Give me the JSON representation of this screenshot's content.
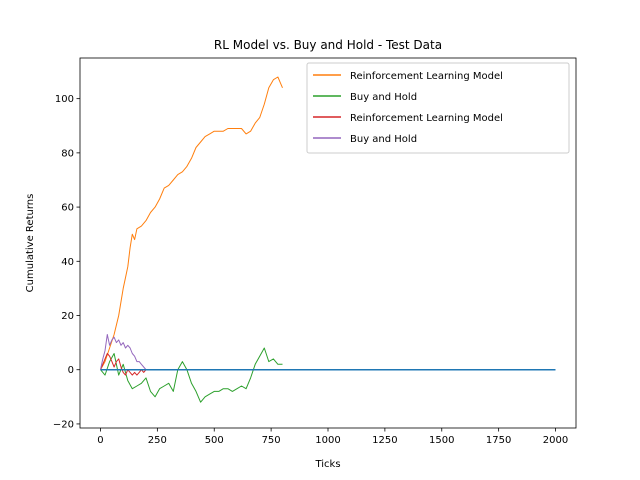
{
  "chart_data": {
    "type": "line",
    "title": "RL Model vs. Buy and Hold - Test Data",
    "xlabel": "Ticks",
    "ylabel": "Cumulative Returns",
    "xlim": [
      -90,
      2090
    ],
    "ylim": [
      -21.5,
      115
    ],
    "xticks": [
      0,
      250,
      500,
      750,
      1000,
      1250,
      1500,
      1750,
      2000
    ],
    "yticks": [
      -20,
      0,
      20,
      40,
      60,
      80,
      100
    ],
    "grid": false,
    "legend_position": "top-right",
    "series": [
      {
        "name": "Reinforcement Learning Model",
        "color": "#ff7f0e",
        "points": [
          [
            0,
            0
          ],
          [
            20,
            3
          ],
          [
            40,
            8
          ],
          [
            60,
            13
          ],
          [
            80,
            20
          ],
          [
            100,
            30
          ],
          [
            110,
            34
          ],
          [
            120,
            38
          ],
          [
            130,
            45
          ],
          [
            140,
            50
          ],
          [
            150,
            48
          ],
          [
            160,
            52
          ],
          [
            180,
            53
          ],
          [
            200,
            55
          ],
          [
            220,
            58
          ],
          [
            240,
            60
          ],
          [
            260,
            63
          ],
          [
            280,
            67
          ],
          [
            300,
            68
          ],
          [
            320,
            70
          ],
          [
            340,
            72
          ],
          [
            360,
            73
          ],
          [
            380,
            75
          ],
          [
            400,
            78
          ],
          [
            420,
            82
          ],
          [
            440,
            84
          ],
          [
            460,
            86
          ],
          [
            480,
            87
          ],
          [
            500,
            88
          ],
          [
            520,
            88
          ],
          [
            540,
            88
          ],
          [
            560,
            89
          ],
          [
            580,
            89
          ],
          [
            600,
            89
          ],
          [
            620,
            89
          ],
          [
            640,
            87
          ],
          [
            660,
            88
          ],
          [
            680,
            91
          ],
          [
            700,
            93
          ],
          [
            720,
            98
          ],
          [
            740,
            104
          ],
          [
            760,
            107
          ],
          [
            780,
            108
          ],
          [
            790,
            106
          ],
          [
            800,
            104
          ]
        ]
      },
      {
        "name": "Buy and Hold",
        "color": "#2ca02c",
        "points": [
          [
            0,
            0
          ],
          [
            20,
            -2
          ],
          [
            40,
            3
          ],
          [
            60,
            6
          ],
          [
            80,
            -2
          ],
          [
            100,
            2
          ],
          [
            120,
            -4
          ],
          [
            140,
            -7
          ],
          [
            160,
            -6
          ],
          [
            180,
            -5
          ],
          [
            200,
            -3
          ],
          [
            220,
            -8
          ],
          [
            240,
            -10
          ],
          [
            260,
            -7
          ],
          [
            280,
            -6
          ],
          [
            300,
            -5
          ],
          [
            320,
            -8
          ],
          [
            340,
            0
          ],
          [
            360,
            3
          ],
          [
            380,
            0
          ],
          [
            400,
            -5
          ],
          [
            420,
            -8
          ],
          [
            440,
            -12
          ],
          [
            460,
            -10
          ],
          [
            480,
            -9
          ],
          [
            500,
            -8
          ],
          [
            520,
            -8
          ],
          [
            540,
            -7
          ],
          [
            560,
            -7
          ],
          [
            580,
            -8
          ],
          [
            600,
            -7
          ],
          [
            620,
            -6
          ],
          [
            640,
            -7
          ],
          [
            660,
            -3
          ],
          [
            680,
            2
          ],
          [
            700,
            5
          ],
          [
            720,
            8
          ],
          [
            740,
            3
          ],
          [
            760,
            4
          ],
          [
            780,
            2
          ],
          [
            800,
            2
          ]
        ]
      },
      {
        "name": "Reinforcement Learning Model",
        "color": "#d62728",
        "points": [
          [
            0,
            0
          ],
          [
            10,
            2
          ],
          [
            20,
            4
          ],
          [
            30,
            6
          ],
          [
            40,
            5
          ],
          [
            50,
            3
          ],
          [
            60,
            1
          ],
          [
            70,
            3
          ],
          [
            80,
            4
          ],
          [
            90,
            1
          ],
          [
            100,
            -1
          ],
          [
            110,
            -2
          ],
          [
            120,
            0
          ],
          [
            130,
            -1
          ],
          [
            140,
            -2
          ],
          [
            150,
            -1
          ],
          [
            160,
            -2
          ],
          [
            170,
            -1
          ],
          [
            180,
            0
          ],
          [
            190,
            -1
          ],
          [
            200,
            0
          ]
        ]
      },
      {
        "name": "Buy and Hold",
        "color": "#9467bd",
        "points": [
          [
            0,
            0
          ],
          [
            10,
            4
          ],
          [
            20,
            7
          ],
          [
            30,
            13
          ],
          [
            40,
            9
          ],
          [
            50,
            11
          ],
          [
            60,
            12
          ],
          [
            70,
            10
          ],
          [
            80,
            11
          ],
          [
            90,
            9
          ],
          [
            100,
            10
          ],
          [
            110,
            8
          ],
          [
            120,
            9
          ],
          [
            130,
            8
          ],
          [
            140,
            6
          ],
          [
            150,
            5
          ],
          [
            160,
            3
          ],
          [
            170,
            3
          ],
          [
            180,
            2
          ],
          [
            190,
            1
          ],
          [
            200,
            0
          ]
        ]
      },
      {
        "name": "",
        "color": "#1f77b4",
        "points": [
          [
            0,
            0
          ],
          [
            2000,
            0
          ]
        ]
      }
    ]
  }
}
